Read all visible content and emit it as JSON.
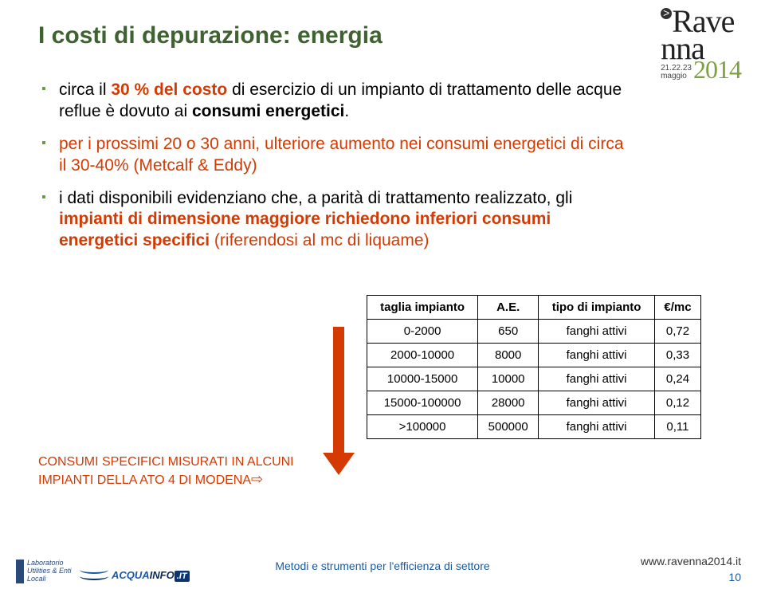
{
  "title": "I costi di depurazione: energia",
  "event_logo": {
    "brand_line1": "Rave",
    "brand_line2": "nna",
    "dates_top": "21.22.23",
    "dates_bottom": "maggio",
    "year": "2014"
  },
  "bullets": [
    {
      "prefix": "circa il ",
      "highlight": "30 % del costo",
      "middle": " di esercizio di un impianto di trattamento delle acque reflue è dovuto ai ",
      "suffix_bold": "consumi energetici",
      "tail": "."
    },
    {
      "line1": "per i prossimi 20 o 30 anni, ulteriore aumento nei consumi energetici di circa il 30-40% (Metcalf & Eddy)"
    },
    {
      "line2a": "i dati disponibili evidenziano che, a parità di trattamento realizzato, gli ",
      "line2b": "impianti di dimensione maggiore richiedono inferiori consumi energetici specifici",
      "line2c": " (riferendosi al mc di liquame)"
    }
  ],
  "table": {
    "headers": [
      "taglia impianto",
      "A.E.",
      "tipo di impianto",
      "€/mc"
    ],
    "rows": [
      [
        "0-2000",
        "650",
        "fanghi attivi",
        "0,72"
      ],
      [
        "2000-10000",
        "8000",
        "fanghi attivi",
        "0,33"
      ],
      [
        "10000-15000",
        "10000",
        "fanghi attivi",
        "0,24"
      ],
      [
        "15000-100000",
        "28000",
        "fanghi attivi",
        "0,12"
      ],
      [
        ">100000",
        "500000",
        "fanghi attivi",
        "0,11"
      ]
    ]
  },
  "caption": {
    "line1": "CONSUMI SPECIFICI MISURATI IN ALCUNI",
    "line2": "IMPIANTI DELLA ATO 4 DI MODENA",
    "arrow": "⇨"
  },
  "footer": {
    "lab_logo": "Laboratorio Utilities & Enti Locali",
    "acqua_a": "ACQUA",
    "acqua_b": "INFO",
    "acqua_c": ".IT",
    "center": "Metodi e strumenti per l'efficienza di settore",
    "url": "www.ravenna2014.it",
    "page": "10"
  },
  "colors": {
    "title": "#3e6330",
    "accent": "#d43a02",
    "bullet_marker": "#6b9945",
    "event_year": "#7ba23f",
    "footer_text": "#1a5aa0"
  }
}
